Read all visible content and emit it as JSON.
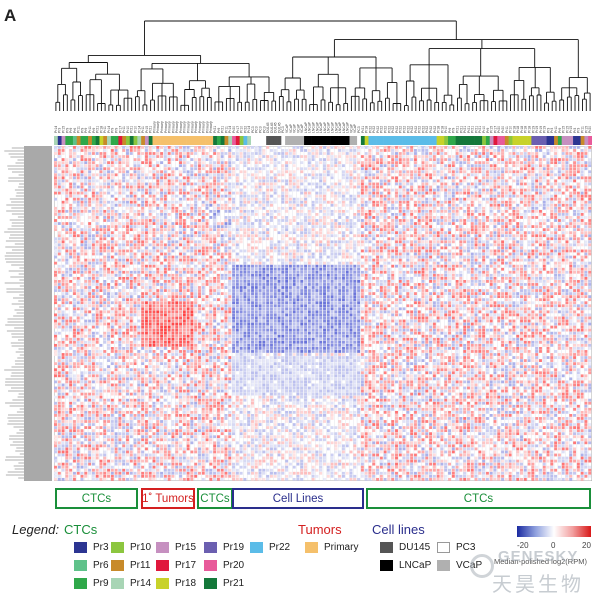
{
  "panel_label": "A",
  "sample_ids": [
    "Pr14",
    "Pr3",
    "Pr15",
    "Pr9",
    "Pr9",
    "Pr6",
    "Pr11",
    "Pr9",
    "Pr9",
    "Pr11",
    "Pr9",
    "Pr21",
    "Pr18",
    "Pr11",
    "Pr14",
    "Pr9",
    "Pr9",
    "Pr17",
    "Pr11",
    "Pr10",
    "Pr21",
    "Pr10",
    "Pr14",
    "Pr11",
    "Pr15",
    "Pr21",
    "Primary",
    "Primary",
    "Primary",
    "Primary",
    "Primary",
    "Primary",
    "Primary",
    "Primary",
    "Primary",
    "Primary",
    "Primary",
    "Primary",
    "Primary",
    "Primary",
    "Primary",
    "Primary",
    "Pr21",
    "Pr9",
    "Pr21",
    "Pr11",
    "Pr14",
    "Pr20",
    "Pr17",
    "Pr10",
    "Pr22",
    "Pr14",
    "PC3",
    "PC3",
    "PC3",
    "PC3",
    "DU145",
    "DU145",
    "DU145",
    "DU145",
    "PC3",
    "VCaP",
    "VCaP",
    "VCaP",
    "VCaP",
    "VCaP",
    "LNCaP",
    "LNCaP",
    "LNCaP",
    "LNCaP",
    "LNCaP",
    "LNCaP",
    "LNCaP",
    "LNCaP",
    "LNCaP",
    "LNCaP",
    "LNCaP",
    "LNCaP",
    "VCaP",
    "VCaP",
    "PC3",
    "Pr21",
    "Pr18",
    "Pr22",
    "Pr22",
    "Pr22",
    "Pr22",
    "Pr22",
    "Pr22",
    "Pr22",
    "Pr22",
    "Pr22",
    "Pr22",
    "Pr22",
    "Pr22",
    "Pr22",
    "Pr22",
    "Pr22",
    "Pr22",
    "Pr22",
    "Pr22",
    "Pr18",
    "Pr18",
    "Pr10",
    "Pr9",
    "Pr9",
    "Pr21",
    "Pr21",
    "Pr21",
    "Pr21",
    "Pr21",
    "Pr21",
    "Pr21",
    "Pr10",
    "Pr9",
    "Pr15",
    "Pr17",
    "Pr20",
    "Pr20",
    "Pr11",
    "Pr10",
    "Pr18",
    "Pr18",
    "Pr18",
    "Pr18",
    "Pr18",
    "Pr19",
    "Pr19",
    "Pr19",
    "Pr19",
    "Pr3",
    "Pr3",
    "Pr11",
    "Pr9",
    "Pr15",
    "Pr15",
    "Pr15",
    "Pr3",
    "Pr3",
    "Pr11",
    "Pr15",
    "Pr20"
  ],
  "groups": [
    {
      "label": "CTCs",
      "color": "#1a8f3a"
    },
    {
      "label": "1˚ Tumors",
      "color": "#d42020"
    },
    {
      "label": "CTCs",
      "color": "#1a8f3a"
    },
    {
      "label": "Cell Lines",
      "color": "#2a2e8c"
    },
    {
      "label": "CTCs",
      "color": "#1a8f3a"
    }
  ],
  "legend": {
    "label": "Legend:",
    "ctcs_title": "CTCs",
    "tumors_title": "Tumors",
    "celllines_title": "Cell lines",
    "ctc_items": [
      {
        "label": "Pr3",
        "color": "#2c3592"
      },
      {
        "label": "Pr6",
        "color": "#5fc28a"
      },
      {
        "label": "Pr9",
        "color": "#2fa84a"
      },
      {
        "label": "Pr10",
        "color": "#8cc63f"
      },
      {
        "label": "Pr11",
        "color": "#c88a2a"
      },
      {
        "label": "Pr14",
        "color": "#a8d5b5"
      },
      {
        "label": "Pr15",
        "color": "#c690c0"
      },
      {
        "label": "Pr17",
        "color": "#e0183c"
      },
      {
        "label": "Pr18",
        "color": "#c8d22a"
      },
      {
        "label": "Pr19",
        "color": "#6b5fb0"
      },
      {
        "label": "Pr20",
        "color": "#e85a9a"
      },
      {
        "label": "Pr21",
        "color": "#14783a"
      },
      {
        "label": "Pr22",
        "color": "#5bbce8"
      }
    ],
    "tumor_items": [
      {
        "label": "Primary",
        "color": "#f5c06b"
      }
    ],
    "cellline_items": [
      {
        "label": "DU145",
        "color": "#555555"
      },
      {
        "label": "LNCaP",
        "color": "#000000"
      },
      {
        "label": "PC3",
        "color": "#ffffff"
      },
      {
        "label": "VCaP",
        "color": "#b0b0b0"
      }
    ],
    "scale": {
      "min_label": "-20",
      "mid_label": "0",
      "max_label": "20",
      "caption": "Median-polished log2(RPM)",
      "low_color": "#1a2aa0",
      "mid_color": "#ffffff",
      "high_color": "#d81818"
    }
  },
  "watermark": {
    "text_en": "GENESKY",
    "text_cn": "天昊生物"
  }
}
